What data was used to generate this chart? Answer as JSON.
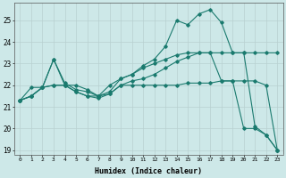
{
  "xlabel": "Humidex (Indice chaleur)",
  "bg_color": "#cde8e8",
  "grid_color": "#b8d0d0",
  "line_color": "#1a7a6e",
  "xlim": [
    -0.5,
    23.5
  ],
  "ylim": [
    18.8,
    25.8
  ],
  "yticks": [
    19,
    20,
    21,
    22,
    23,
    24,
    25
  ],
  "xticks": [
    0,
    1,
    2,
    3,
    4,
    5,
    6,
    7,
    8,
    9,
    10,
    11,
    12,
    13,
    14,
    15,
    16,
    17,
    18,
    19,
    20,
    21,
    22,
    23
  ],
  "line1_x": [
    0,
    1,
    2,
    3,
    4,
    5,
    6,
    7,
    8,
    9,
    10,
    11,
    12,
    13,
    14,
    15,
    16,
    17,
    18,
    19,
    20,
    21,
    22,
    23
  ],
  "line1_y": [
    21.3,
    21.5,
    21.9,
    23.2,
    22.0,
    21.7,
    21.5,
    21.5,
    21.7,
    22.3,
    22.5,
    22.9,
    23.2,
    23.8,
    25.0,
    24.8,
    25.3,
    25.5,
    24.9,
    23.5,
    23.5,
    20.1,
    19.7,
    19.0
  ],
  "line2_x": [
    0,
    1,
    2,
    3,
    4,
    5,
    6,
    7,
    8,
    9,
    10,
    11,
    12,
    13,
    14,
    15,
    16,
    17,
    18,
    19,
    20,
    21,
    22,
    23
  ],
  "line2_y": [
    21.3,
    21.9,
    21.9,
    22.0,
    22.0,
    21.7,
    21.5,
    21.4,
    21.6,
    22.0,
    22.0,
    22.0,
    22.0,
    22.0,
    22.0,
    22.1,
    22.1,
    22.1,
    22.2,
    22.2,
    22.2,
    22.2,
    22.0,
    19.0
  ],
  "line3_x": [
    0,
    1,
    2,
    3,
    4,
    5,
    6,
    7,
    8,
    9,
    10,
    11,
    12,
    13,
    14,
    15,
    16,
    17,
    18,
    19,
    20,
    21,
    22,
    23
  ],
  "line3_y": [
    21.3,
    21.5,
    21.9,
    23.2,
    22.1,
    21.8,
    21.7,
    21.5,
    21.6,
    22.0,
    22.2,
    22.3,
    22.5,
    22.8,
    23.1,
    23.3,
    23.5,
    23.5,
    23.5,
    23.5,
    23.5,
    23.5,
    23.5,
    23.5
  ],
  "line4_x": [
    0,
    1,
    2,
    3,
    4,
    5,
    6,
    7,
    8,
    9,
    10,
    11,
    12,
    13,
    14,
    15,
    16,
    17,
    18,
    19,
    20,
    21,
    22,
    23
  ],
  "line4_y": [
    21.3,
    21.5,
    21.9,
    22.0,
    22.0,
    22.0,
    21.8,
    21.5,
    22.0,
    22.3,
    22.5,
    22.8,
    23.0,
    23.2,
    23.4,
    23.5,
    23.5,
    23.5,
    22.2,
    22.2,
    20.0,
    20.0,
    19.7,
    19.0
  ]
}
